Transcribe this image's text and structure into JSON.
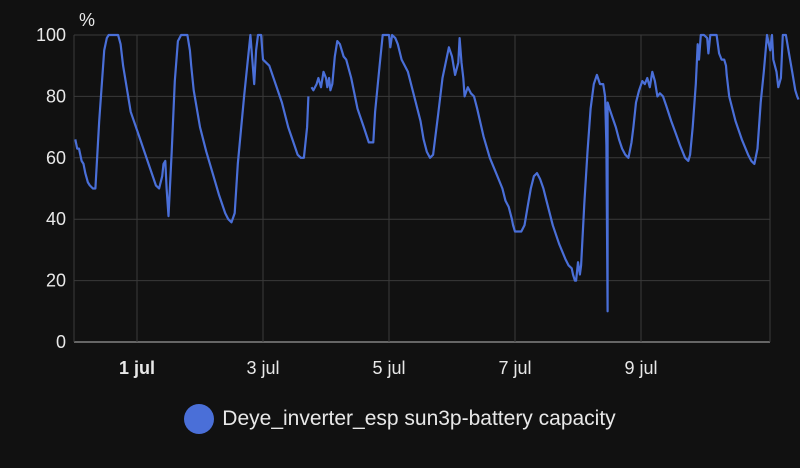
{
  "chart_data": {
    "type": "line",
    "ylabel": "%",
    "ylim": [
      0,
      100
    ],
    "yticks": [
      "0",
      "20",
      "40",
      "60",
      "80",
      "100"
    ],
    "xlim": [
      -0.9,
      10.05
    ],
    "xticks": [
      {
        "label": "1 jul",
        "value": 0,
        "bold": true
      },
      {
        "label": "3 jul",
        "value": 2,
        "bold": false
      },
      {
        "label": "5 jul",
        "value": 4,
        "bold": false
      },
      {
        "label": "7 jul",
        "value": 6,
        "bold": false
      },
      {
        "label": "9 jul",
        "value": 8,
        "bold": false
      }
    ],
    "grid": true,
    "legend_position": "bottom",
    "colors": {
      "line": "#4a6fd8",
      "grid": "#3a3a3a",
      "axis": "#bbbbbb",
      "background": "#111111"
    },
    "series": [
      {
        "name": "Deye_inverter_esp sun3p-battery capacity",
        "segments": [
          [
            [
              -0.98,
              66
            ],
            [
              -0.95,
              63
            ],
            [
              -0.92,
              63
            ],
            [
              -0.88,
              59
            ],
            [
              -0.85,
              58
            ],
            [
              -0.82,
              55
            ],
            [
              -0.78,
              52
            ],
            [
              -0.75,
              51
            ],
            [
              -0.7,
              50
            ],
            [
              -0.66,
              50
            ],
            [
              -0.6,
              72
            ],
            [
              -0.52,
              95
            ],
            [
              -0.48,
              99
            ],
            [
              -0.45,
              100
            ],
            [
              -0.3,
              100
            ],
            [
              -0.26,
              97
            ],
            [
              -0.22,
              90
            ],
            [
              -0.1,
              75
            ],
            [
              0.05,
              66
            ],
            [
              0.2,
              57
            ],
            [
              0.3,
              51
            ],
            [
              0.35,
              50
            ],
            [
              0.4,
              54
            ],
            [
              0.42,
              58
            ],
            [
              0.45,
              59
            ],
            [
              0.47,
              50
            ],
            [
              0.5,
              41
            ],
            [
              0.55,
              62
            ],
            [
              0.6,
              85
            ],
            [
              0.65,
              98
            ],
            [
              0.7,
              100
            ],
            [
              0.8,
              100
            ],
            [
              0.84,
              95
            ],
            [
              0.86,
              90
            ],
            [
              0.9,
              82
            ],
            [
              1.0,
              70
            ],
            [
              1.1,
              62
            ],
            [
              1.2,
              55
            ],
            [
              1.3,
              48
            ],
            [
              1.4,
              42
            ],
            [
              1.45,
              40
            ],
            [
              1.5,
              39
            ],
            [
              1.55,
              42
            ],
            [
              1.6,
              58
            ],
            [
              1.7,
              80
            ],
            [
              1.8,
              100
            ],
            [
              1.83,
              92
            ],
            [
              1.86,
              84
            ],
            [
              1.89,
              95
            ],
            [
              1.92,
              100
            ],
            [
              1.97,
              100
            ],
            [
              2.0,
              92
            ],
            [
              2.1,
              90
            ],
            [
              2.3,
              78
            ],
            [
              2.4,
              70
            ],
            [
              2.5,
              64
            ],
            [
              2.55,
              61
            ],
            [
              2.6,
              60
            ],
            [
              2.65,
              60
            ],
            [
              2.7,
              70
            ],
            [
              2.72,
              80
            ]
          ],
          [
            [
              2.77,
              83
            ],
            [
              2.8,
              82
            ],
            [
              2.85,
              84
            ],
            [
              2.88,
              86
            ],
            [
              2.92,
              83
            ],
            [
              2.96,
              88
            ],
            [
              3.0,
              86
            ],
            [
              3.02,
              83
            ],
            [
              3.05,
              86
            ],
            [
              3.07,
              82
            ],
            [
              3.1,
              84
            ],
            [
              3.14,
              93
            ],
            [
              3.18,
              98
            ],
            [
              3.22,
              97
            ],
            [
              3.28,
              93
            ],
            [
              3.32,
              92
            ],
            [
              3.4,
              86
            ],
            [
              3.5,
              76
            ],
            [
              3.6,
              70
            ],
            [
              3.68,
              65
            ],
            [
              3.75,
              65
            ],
            [
              3.78,
              75
            ],
            [
              3.85,
              90
            ],
            [
              3.9,
              100
            ],
            [
              4.0,
              100
            ],
            [
              4.02,
              96
            ],
            [
              4.05,
              100
            ],
            [
              4.1,
              99
            ],
            [
              4.14,
              97
            ],
            [
              4.2,
              92
            ],
            [
              4.25,
              90
            ],
            [
              4.3,
              88
            ],
            [
              4.4,
              80
            ],
            [
              4.5,
              72
            ],
            [
              4.55,
              66
            ],
            [
              4.6,
              62
            ],
            [
              4.65,
              60
            ],
            [
              4.7,
              61
            ],
            [
              4.78,
              74
            ],
            [
              4.85,
              86
            ],
            [
              4.95,
              96
            ],
            [
              5.0,
              93
            ],
            [
              5.05,
              87
            ],
            [
              5.1,
              91
            ],
            [
              5.12,
              99
            ],
            [
              5.15,
              91
            ],
            [
              5.18,
              86
            ],
            [
              5.2,
              80
            ],
            [
              5.25,
              83
            ],
            [
              5.3,
              81
            ],
            [
              5.35,
              80
            ],
            [
              5.4,
              76
            ],
            [
              5.5,
              67
            ],
            [
              5.6,
              60
            ],
            [
              5.7,
              55
            ],
            [
              5.8,
              50
            ],
            [
              5.85,
              46
            ],
            [
              5.9,
              44
            ],
            [
              5.95,
              40
            ],
            [
              5.97,
              38
            ],
            [
              6.0,
              36
            ],
            [
              6.1,
              36
            ],
            [
              6.15,
              38
            ],
            [
              6.2,
              44
            ],
            [
              6.25,
              50
            ],
            [
              6.3,
              54
            ],
            [
              6.35,
              55
            ],
            [
              6.4,
              53
            ],
            [
              6.45,
              50
            ],
            [
              6.5,
              46
            ],
            [
              6.6,
              38
            ],
            [
              6.7,
              32
            ],
            [
              6.8,
              27
            ],
            [
              6.85,
              25
            ],
            [
              6.9,
              24
            ],
            [
              6.92,
              22
            ],
            [
              6.95,
              20
            ],
            [
              6.97,
              20
            ],
            [
              7.0,
              26
            ],
            [
              7.03,
              22
            ],
            [
              7.05,
              25
            ],
            [
              7.1,
              45
            ],
            [
              7.15,
              62
            ],
            [
              7.2,
              76
            ],
            [
              7.25,
              84
            ],
            [
              7.3,
              87
            ],
            [
              7.35,
              84
            ],
            [
              7.4,
              84
            ],
            [
              7.43,
              80
            ],
            [
              7.45,
              64
            ],
            [
              7.47,
              10
            ],
            [
              7.47,
              78
            ],
            [
              7.5,
              76
            ],
            [
              7.55,
              73
            ],
            [
              7.6,
              70
            ],
            [
              7.65,
              66
            ],
            [
              7.7,
              63
            ],
            [
              7.75,
              61
            ],
            [
              7.8,
              60
            ],
            [
              7.82,
              62
            ],
            [
              7.85,
              65
            ],
            [
              7.88,
              70
            ],
            [
              7.92,
              78
            ],
            [
              7.97,
              82
            ],
            [
              8.02,
              85
            ],
            [
              8.06,
              84
            ],
            [
              8.1,
              86
            ],
            [
              8.14,
              83
            ],
            [
              8.18,
              88
            ],
            [
              8.22,
              85
            ],
            [
              8.26,
              80
            ],
            [
              8.3,
              81
            ],
            [
              8.35,
              80
            ],
            [
              8.4,
              77
            ],
            [
              8.48,
              72
            ],
            [
              8.55,
              68
            ],
            [
              8.62,
              64
            ],
            [
              8.7,
              60
            ],
            [
              8.75,
              59
            ],
            [
              8.78,
              61
            ],
            [
              8.82,
              70
            ],
            [
              8.87,
              84
            ],
            [
              8.9,
              97
            ],
            [
              8.92,
              92
            ],
            [
              8.95,
              100
            ],
            [
              9.0,
              100
            ],
            [
              9.05,
              99
            ],
            [
              9.07,
              94
            ],
            [
              9.1,
              100
            ],
            [
              9.2,
              100
            ],
            [
              9.24,
              94
            ],
            [
              9.28,
              92
            ],
            [
              9.32,
              92
            ],
            [
              9.35,
              90
            ],
            [
              9.36,
              87
            ],
            [
              9.4,
              80
            ],
            [
              9.5,
              72
            ],
            [
              9.6,
              66
            ],
            [
              9.7,
              61
            ],
            [
              9.75,
              59
            ],
            [
              9.8,
              58
            ],
            [
              9.85,
              63
            ],
            [
              9.9,
              78
            ],
            [
              9.95,
              88
            ],
            [
              10.0,
              100
            ],
            [
              10.05,
              95
            ],
            [
              10.08,
              100
            ],
            [
              10.1,
              92
            ],
            [
              10.15,
              88
            ],
            [
              10.18,
              83
            ],
            [
              10.22,
              86
            ],
            [
              10.25,
              100
            ],
            [
              10.3,
              100
            ],
            [
              10.35,
              94
            ],
            [
              10.4,
              88
            ],
            [
              10.45,
              82
            ],
            [
              10.48,
              80
            ],
            [
              10.5,
              79
            ]
          ]
        ]
      }
    ]
  }
}
